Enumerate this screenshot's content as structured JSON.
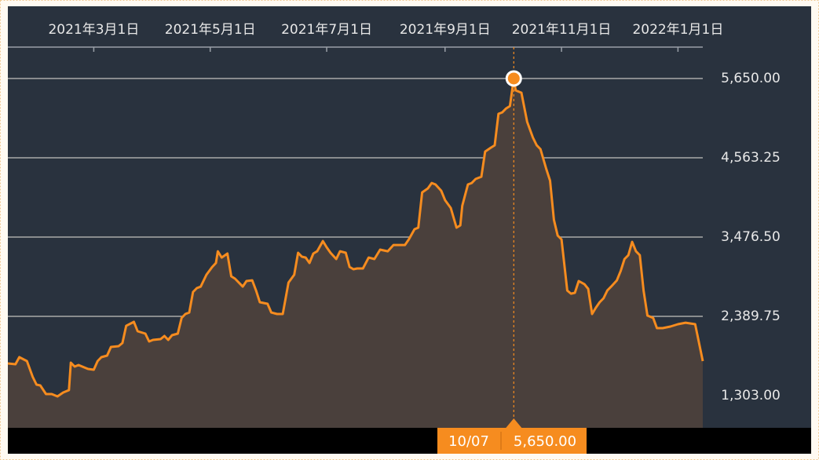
{
  "chart_data": {
    "type": "area",
    "x": [
      "2021-01-15",
      "2021-01-19",
      "2021-01-21",
      "2021-01-25",
      "2021-01-28",
      "2021-01-30",
      "2021-02-01",
      "2021-02-04",
      "2021-02-07",
      "2021-02-10",
      "2021-02-13",
      "2021-02-16",
      "2021-02-17",
      "2021-02-19",
      "2021-02-21",
      "2021-02-23",
      "2021-02-26",
      "2021-03-01",
      "2021-03-03",
      "2021-03-05",
      "2021-03-08",
      "2021-03-10",
      "2021-03-14",
      "2021-03-16",
      "2021-03-18",
      "2021-03-22",
      "2021-03-24",
      "2021-03-28",
      "2021-03-30",
      "2021-04-01",
      "2021-04-05",
      "2021-04-07",
      "2021-04-09",
      "2021-04-11",
      "2021-04-14",
      "2021-04-16",
      "2021-04-18",
      "2021-04-20",
      "2021-04-22",
      "2021-04-24",
      "2021-04-26",
      "2021-04-29",
      "2021-05-02",
      "2021-05-04",
      "2021-05-05",
      "2021-05-07",
      "2021-05-10",
      "2021-05-12",
      "2021-05-14",
      "2021-05-18",
      "2021-05-20",
      "2021-05-23",
      "2021-05-25",
      "2021-05-27",
      "2021-05-31",
      "2021-06-02",
      "2021-06-05",
      "2021-06-08",
      "2021-06-11",
      "2021-06-14",
      "2021-06-16",
      "2021-06-18",
      "2021-06-20",
      "2021-06-22",
      "2021-06-24",
      "2021-06-26",
      "2021-06-29",
      "2021-07-01",
      "2021-07-03",
      "2021-07-06",
      "2021-07-08",
      "2021-07-11",
      "2021-07-13",
      "2021-07-15",
      "2021-07-17",
      "2021-07-20",
      "2021-07-23",
      "2021-07-26",
      "2021-07-29",
      "2021-08-02",
      "2021-08-05",
      "2021-08-11",
      "2021-08-13",
      "2021-08-16",
      "2021-08-18",
      "2021-08-20",
      "2021-08-23",
      "2021-08-25",
      "2021-08-27",
      "2021-08-30",
      "2021-09-01",
      "2021-09-04",
      "2021-09-07",
      "2021-09-09",
      "2021-09-10",
      "2021-09-13",
      "2021-09-15",
      "2021-09-17",
      "2021-09-20",
      "2021-09-22",
      "2021-09-25",
      "2021-09-27",
      "2021-09-29",
      "2021-10-01",
      "2021-10-03",
      "2021-10-05",
      "2021-10-07",
      "2021-10-08",
      "2021-10-11",
      "2021-10-14",
      "2021-10-17",
      "2021-10-19",
      "2021-10-21",
      "2021-10-24",
      "2021-10-26",
      "2021-10-28",
      "2021-10-30",
      "2021-11-01",
      "2021-11-04",
      "2021-11-06",
      "2021-11-08",
      "2021-11-10",
      "2021-11-13",
      "2021-11-15",
      "2021-11-17",
      "2021-11-19",
      "2021-11-21",
      "2021-11-23",
      "2021-11-25",
      "2021-11-27",
      "2021-11-30",
      "2021-12-02",
      "2021-12-04",
      "2021-12-06",
      "2021-12-08",
      "2021-12-10",
      "2021-12-12",
      "2021-12-14",
      "2021-12-16",
      "2021-12-19",
      "2021-12-21",
      "2021-12-24",
      "2021-12-28",
      "2022-01-01",
      "2022-01-05",
      "2022-01-10",
      "2022-01-14"
    ],
    "series": [
      {
        "color": "#f68c1f",
        "fill": "#4a403c",
        "values": [
          1744,
          1733,
          1830,
          1776,
          1561,
          1454,
          1443,
          1325,
          1325,
          1292,
          1346,
          1378,
          1755,
          1701,
          1723,
          1701,
          1669,
          1658,
          1776,
          1830,
          1852,
          1970,
          1981,
          2024,
          2260,
          2314,
          2185,
          2153,
          2045,
          2067,
          2078,
          2121,
          2067,
          2131,
          2153,
          2368,
          2422,
          2443,
          2723,
          2777,
          2798,
          2960,
          3067,
          3121,
          3282,
          3196,
          3250,
          2938,
          2906,
          2798,
          2874,
          2884,
          2744,
          2583,
          2562,
          2443,
          2422,
          2422,
          2852,
          2960,
          3261,
          3207,
          3196,
          3121,
          3250,
          3282,
          3422,
          3336,
          3261,
          3175,
          3282,
          3261,
          3067,
          3035,
          3046,
          3046,
          3196,
          3175,
          3304,
          3282,
          3368,
          3368,
          3444,
          3584,
          3605,
          4089,
          4143,
          4218,
          4197,
          4111,
          3982,
          3874,
          3605,
          3637,
          3906,
          4197,
          4218,
          4272,
          4304,
          4648,
          4702,
          4734,
          5165,
          5186,
          5240,
          5272,
          5650,
          5487,
          5455,
          5057,
          4842,
          4734,
          4681,
          4412,
          4250,
          3713,
          3497,
          3444,
          2744,
          2701,
          2712,
          2874,
          2830,
          2766,
          2422,
          2508,
          2583,
          2637,
          2744,
          2798,
          2884,
          3013,
          3175,
          3228,
          3411,
          3282,
          3228,
          2744,
          2400,
          2368,
          2228,
          2228,
          2250,
          2282,
          2303,
          2282,
          1776
        ]
      }
    ],
    "xlim": [
      "2021-01-15",
      "2022-01-14"
    ],
    "xticks": [
      {
        "value": "2021-03-01",
        "label": "2021年3月1日"
      },
      {
        "value": "2021-05-01",
        "label": "2021年5月1日"
      },
      {
        "value": "2021-07-01",
        "label": "2021年7月1日"
      },
      {
        "value": "2021-09-01",
        "label": "2021年9月1日"
      },
      {
        "value": "2021-11-01",
        "label": "2021年11月1日"
      },
      {
        "value": "2022-01-01",
        "label": "2022年1月1日"
      }
    ],
    "ylim": [
      862,
      6080
    ],
    "yticks": [
      {
        "value": 1303,
        "label": "1,303.00"
      },
      {
        "value": 2389.75,
        "label": "2,389.75"
      },
      {
        "value": 3476.5,
        "label": "3,476.50"
      },
      {
        "value": 4563.25,
        "label": "4,563.25"
      },
      {
        "value": 5650,
        "label": "5,650.00"
      }
    ],
    "grid": true,
    "highlight": {
      "x": "2021-10-07",
      "label": "10/07",
      "value": 5650,
      "value_label": "5,650.00"
    }
  }
}
